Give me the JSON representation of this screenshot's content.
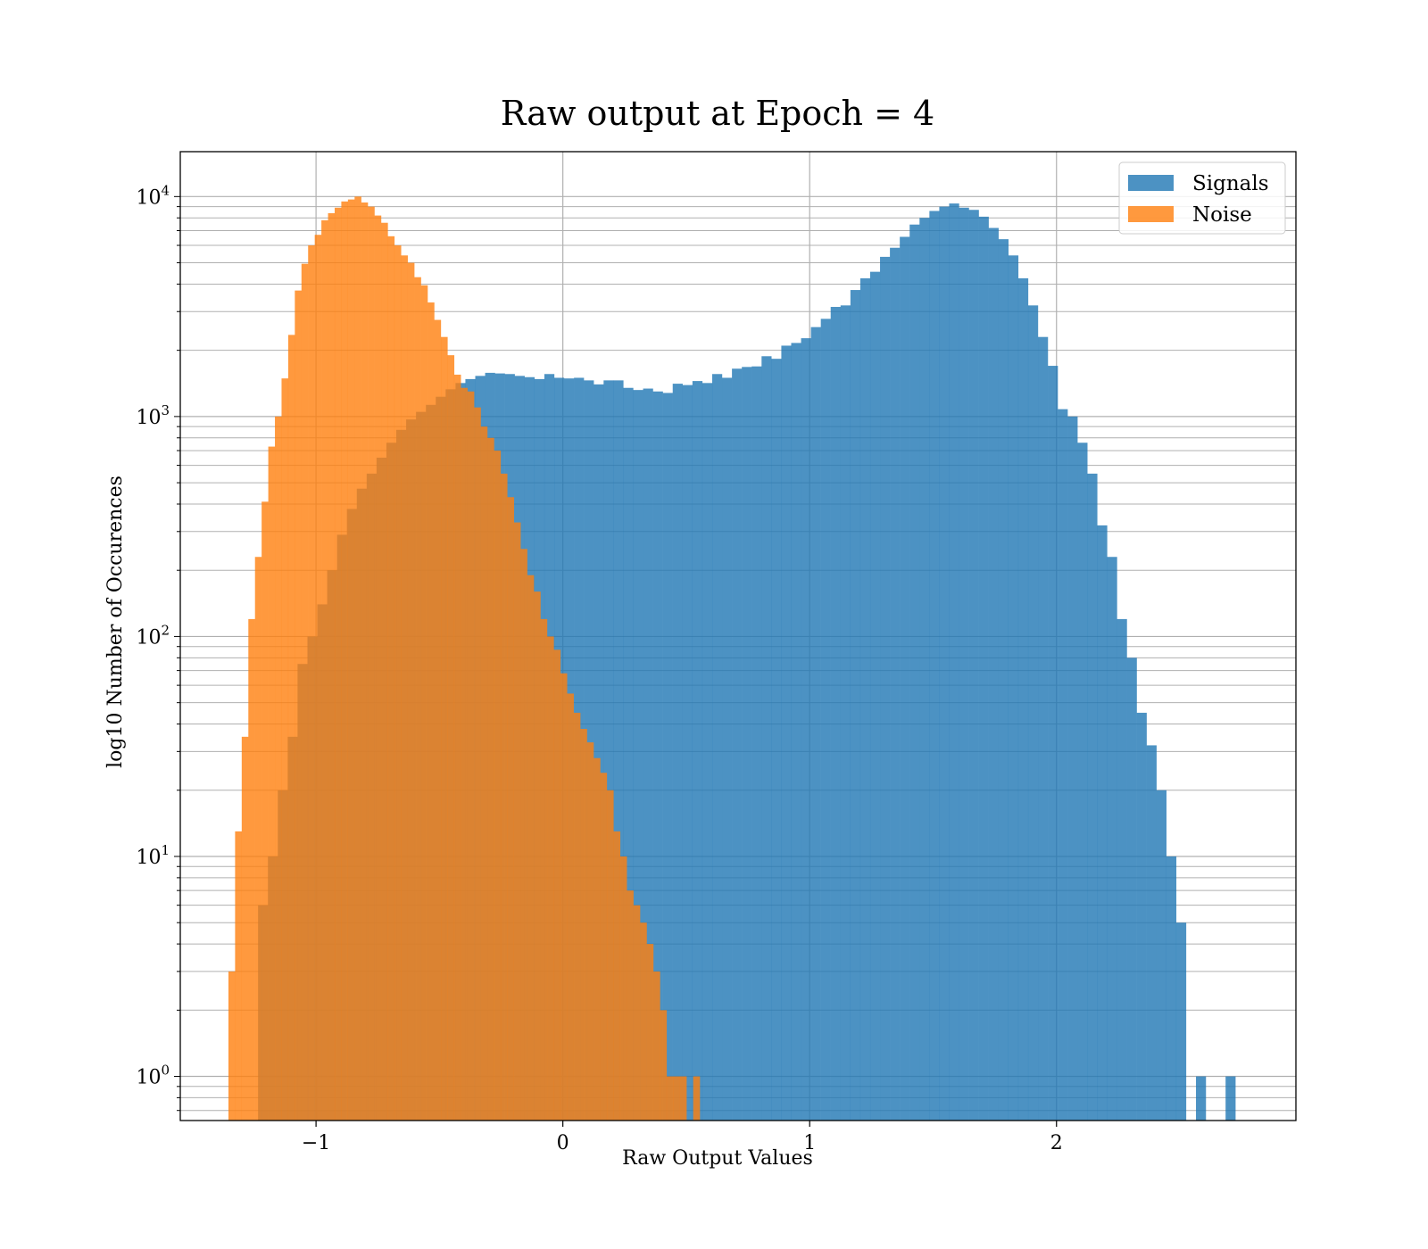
{
  "chart_data": {
    "type": "bar",
    "subtype": "overlapping-histogram",
    "title": "Raw output at Epoch = 4",
    "xlabel": "Raw Output Values",
    "ylabel": "log10 Number of Occurences",
    "xlim": [
      -1.55,
      2.97
    ],
    "ylim": [
      0.63,
      16000
    ],
    "yscale": "log",
    "grid": true,
    "legend_position": "top-right",
    "xticks": [
      {
        "value": -1,
        "label": "−1"
      },
      {
        "value": 0,
        "label": "0"
      },
      {
        "value": 1,
        "label": "1"
      },
      {
        "value": 2,
        "label": "2"
      }
    ],
    "yticks": [
      {
        "value": 1,
        "base": "10",
        "exp": "0"
      },
      {
        "value": 10,
        "base": "10",
        "exp": "1"
      },
      {
        "value": 100,
        "base": "10",
        "exp": "2"
      },
      {
        "value": 1000,
        "base": "10",
        "exp": "3"
      },
      {
        "value": 10000,
        "base": "10",
        "exp": "4"
      }
    ],
    "series": [
      {
        "name": "Signals",
        "color": "#1f77b4",
        "opacity": 0.8,
        "bin_start": -1.2349,
        "bin_width": 0.04,
        "values": [
          6,
          10,
          20,
          35,
          75,
          100,
          140,
          200,
          290,
          380,
          470,
          550,
          650,
          760,
          870,
          970,
          1050,
          1130,
          1230,
          1330,
          1420,
          1480,
          1530,
          1580,
          1570,
          1560,
          1530,
          1510,
          1480,
          1560,
          1500,
          1490,
          1500,
          1460,
          1400,
          1460,
          1460,
          1350,
          1320,
          1340,
          1300,
          1280,
          1410,
          1390,
          1450,
          1420,
          1560,
          1500,
          1650,
          1680,
          1690,
          1880,
          1830,
          2100,
          2160,
          2270,
          2550,
          2780,
          3150,
          3200,
          3760,
          4250,
          4550,
          5320,
          5850,
          6560,
          7460,
          8000,
          8600,
          9000,
          9300,
          8900,
          8700,
          8100,
          7200,
          6400,
          5400,
          4250,
          3200,
          2300,
          1700,
          1080,
          1000,
          760,
          550,
          320,
          230,
          120,
          80,
          45,
          32,
          20,
          10,
          5,
          0,
          1,
          0,
          0,
          1
        ]
      },
      {
        "name": "Noise",
        "color": "#ff7f0e",
        "opacity": 0.8,
        "bin_start": -1.3549,
        "bin_width": 0.0269,
        "values": [
          3,
          13,
          35,
          120,
          230,
          410,
          730,
          1000,
          1490,
          2350,
          3740,
          4950,
          6000,
          6700,
          7800,
          8400,
          8900,
          9500,
          9700,
          10000,
          9400,
          9000,
          8200,
          7600,
          6600,
          6000,
          5400,
          5000,
          4300,
          3950,
          3300,
          2750,
          2300,
          1900,
          1550,
          1350,
          1300,
          1100,
          900,
          800,
          700,
          550,
          430,
          330,
          250,
          190,
          160,
          120,
          100,
          87,
          68,
          55,
          45,
          38,
          33,
          28,
          24,
          20,
          13,
          10,
          7,
          6,
          5,
          4,
          3,
          2,
          1,
          1,
          1,
          0,
          1
        ]
      }
    ]
  }
}
